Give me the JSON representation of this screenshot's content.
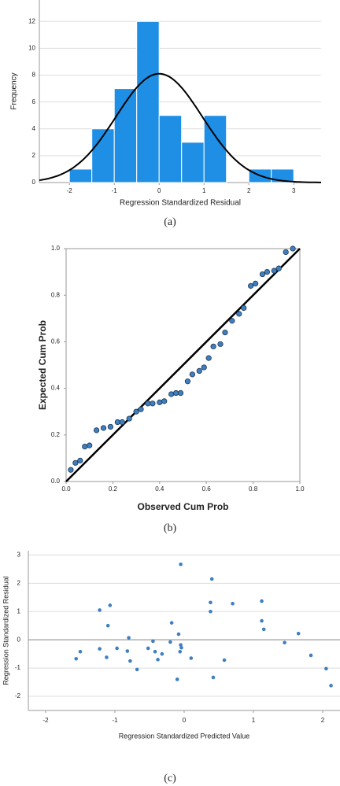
{
  "chart_data": [
    {
      "type": "histogram",
      "caption": "(a)",
      "x_label": "Regression Standardized Residual",
      "y_label": "Frequency",
      "bins": [
        -2,
        -1.5,
        -1,
        -0.5,
        0,
        0.5,
        1,
        1.5,
        2,
        2.5,
        3
      ],
      "values": [
        1,
        4,
        7,
        12,
        5,
        3,
        5,
        0,
        1,
        1
      ],
      "color": "#1f8fe6",
      "normal_curve": {
        "mean": 0,
        "std": 0.96,
        "color": "#000000"
      },
      "xlim": [
        -2.67,
        3.61
      ],
      "ylim": [
        0,
        13.6
      ],
      "xticks": [
        -2,
        -1,
        0,
        1,
        2,
        3
      ],
      "yticks": [
        0,
        2,
        4,
        6,
        8,
        10,
        12
      ],
      "grid": true
    },
    {
      "type": "scatter",
      "caption": "(b)",
      "x_label": "Observed Cum Prob",
      "y_label": "Expected Cum Prob",
      "x": [
        0.02,
        0.04,
        0.06,
        0.08,
        0.1,
        0.13,
        0.16,
        0.19,
        0.22,
        0.24,
        0.27,
        0.3,
        0.32,
        0.35,
        0.37,
        0.4,
        0.42,
        0.45,
        0.47,
        0.49,
        0.52,
        0.54,
        0.57,
        0.59,
        0.61,
        0.63,
        0.66,
        0.68,
        0.71,
        0.74,
        0.76,
        0.79,
        0.81,
        0.84,
        0.86,
        0.89,
        0.91,
        0.94,
        0.97
      ],
      "values": [
        0.05,
        0.08,
        0.09,
        0.15,
        0.155,
        0.22,
        0.23,
        0.235,
        0.255,
        0.255,
        0.27,
        0.3,
        0.31,
        0.335,
        0.335,
        0.34,
        0.345,
        0.375,
        0.38,
        0.38,
        0.43,
        0.46,
        0.475,
        0.49,
        0.53,
        0.58,
        0.59,
        0.64,
        0.69,
        0.72,
        0.745,
        0.84,
        0.85,
        0.89,
        0.9,
        0.905,
        0.915,
        0.985,
        1.0
      ],
      "color": "#3f7fbf",
      "reference_line": true,
      "frame": true,
      "xlim": [
        0,
        1
      ],
      "ylim": [
        0,
        1
      ],
      "xticks": [
        {
          "value": 0,
          "label": "0.0"
        },
        0.2,
        0.4,
        0.6,
        0.8,
        {
          "value": 1,
          "label": "1.0"
        }
      ],
      "yticks": [
        {
          "value": 0,
          "label": "0.0"
        },
        0.2,
        0.4,
        0.6,
        0.8,
        {
          "value": 1,
          "label": "1.0"
        }
      ]
    },
    {
      "type": "scatter",
      "caption": "(c)",
      "x_label": "Regression Standardized Predicted Value",
      "y_label": "Regression Standardized Residual",
      "x": [
        -1.56,
        -1.5,
        -1.22,
        -1.22,
        -1.12,
        -1.1,
        -1.07,
        -0.97,
        -0.82,
        -0.8,
        -0.78,
        -0.68,
        -0.52,
        -0.45,
        -0.42,
        -0.38,
        -0.32,
        -0.2,
        -0.18,
        -0.1,
        -0.08,
        -0.06,
        -0.05,
        -0.04,
        -0.05,
        0.1,
        0.38,
        0.38,
        0.4,
        0.42,
        0.58,
        0.7,
        1.12,
        1.12,
        1.15,
        1.45,
        1.65,
        1.83,
        2.05,
        2.12
      ],
      "values": [
        -0.67,
        -0.42,
        1.05,
        -0.32,
        -0.62,
        0.5,
        1.22,
        -0.3,
        -0.4,
        0.07,
        -0.75,
        -1.05,
        -0.3,
        -0.05,
        -0.42,
        -0.7,
        -0.5,
        -0.08,
        0.6,
        -1.4,
        0.2,
        -0.42,
        -0.18,
        -0.28,
        2.67,
        -0.65,
        1.32,
        1.0,
        2.15,
        -1.33,
        -0.72,
        1.28,
        1.37,
        0.67,
        0.37,
        -0.1,
        0.22,
        -0.55,
        -1.02,
        -1.62
      ],
      "color": "#3f7fbf",
      "hline": 0,
      "grid": true,
      "xlim": [
        -2.25,
        2.25
      ],
      "ylim": [
        -2.5,
        3.15
      ],
      "xticks": [
        -2,
        -1,
        0,
        1,
        2
      ],
      "yticks": [
        -2,
        -1,
        0,
        1,
        2,
        3
      ]
    }
  ]
}
